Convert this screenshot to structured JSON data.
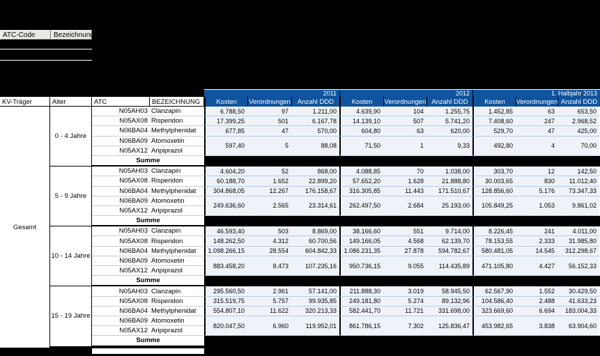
{
  "colors": {
    "header_blue": "#10549E",
    "row_separator_blue": "#B5CBE5",
    "sheet_background": "#000000"
  },
  "top_table": {
    "headers": [
      "ATC-Code",
      "Bezeichnung"
    ]
  },
  "table": {
    "corner_headers": [
      "KV-Träger",
      "Alter",
      "ATC",
      "BEZEICHNUNG"
    ],
    "year_headers": [
      "2011",
      "2012",
      "1. Halbjahr 2013"
    ],
    "measure_headers": [
      "Kosten",
      "Verordnungen",
      "Anzahl DDD"
    ],
    "kv_traeger": "Gesamt",
    "summe_label": "Summe",
    "groups": [
      {
        "age": "0 - 4 Jahre",
        "rows": [
          {
            "atc": "N05AH03",
            "name": "Clanzapin",
            "values": [
              "6.788,50",
              "97",
              "1.211,00",
              "4.639,90",
              "104",
              "1.255,75",
              "1.452,85",
              "63",
              "653,50"
            ]
          },
          {
            "atc": "N05AX08",
            "name": "Risperidon",
            "values": [
              "17.399,25",
              "501",
              "6.167,78",
              "14.139,10",
              "507",
              "5.741,20",
              "7.408,60",
              "247",
              "2.968,52"
            ]
          },
          {
            "atc": "N06BA04",
            "name": "Methylphenidat",
            "values": [
              "677,85",
              "47",
              "570,00",
              "604,80",
              "63",
              "620,00",
              "529,70",
              "47",
              "425,00"
            ]
          }
        ],
        "merged": {
          "rows": [
            {
              "atc": "N06BA09",
              "name": "Atomoxetin"
            },
            {
              "atc": "N05AX12",
              "name": "Aripiprazol"
            }
          ],
          "values": [
            "597,40",
            "5",
            "88,08",
            "71,50",
            "1",
            "9,33",
            "492,80",
            "4",
            "70,00"
          ]
        }
      },
      {
        "age": "5 - 9 Jahre",
        "rows": [
          {
            "atc": "N05AH03",
            "name": "Clanzapin",
            "values": [
              "4.604,20",
              "52",
              "868,00",
              "4.088,85",
              "70",
              "1.038,00",
              "303,70",
              "12",
              "142,50"
            ]
          },
          {
            "atc": "N05AX08",
            "name": "Risperidon",
            "values": [
              "60.188,70",
              "1.652",
              "22.899,20",
              "57.652,20",
              "1.628",
              "21.888,80",
              "30.003,65",
              "830",
              "11.012,40"
            ]
          },
          {
            "atc": "N06BA04",
            "name": "Methylphenidat",
            "values": [
              "304.868,05",
              "12.267",
              "176.158,67",
              "316.305,85",
              "11.443",
              "171.510,67",
              "128.856,60",
              "5.176",
              "73.347,33"
            ]
          }
        ],
        "merged": {
          "rows": [
            {
              "atc": "N06BA09",
              "name": "Atomoxetin"
            },
            {
              "atc": "N05AX12",
              "name": "Aripiprazol"
            }
          ],
          "values": [
            "249.636,60",
            "2.565",
            "23.314,61",
            "262.497,50",
            "2.684",
            "25.193,00",
            "105.849,25",
            "1.053",
            "9.861,02"
          ]
        }
      },
      {
        "age": "10 - 14 Jahre",
        "rows": [
          {
            "atc": "N05AH03",
            "name": "Clanzapin",
            "values": [
              "46.593,40",
              "503",
              "8.869,00",
              "38.166,60",
              "551",
              "9.714,00",
              "8.226,45",
              "241",
              "4.011,00"
            ]
          },
          {
            "atc": "N05AX08",
            "name": "Risperidon",
            "values": [
              "148.262,50",
              "4.312",
              "60.700,56",
              "149.166,05",
              "4.568",
              "62.139,70",
              "78.153,55",
              "2.333",
              "31.985,80"
            ]
          },
          {
            "atc": "N06BA04",
            "name": "Methylphenidat",
            "values": [
              "1.098.266,15",
              "28.554",
              "604.842,33",
              "1.086.231,35",
              "27.878",
              "594.782,67",
              "580.481,05",
              "14.545",
              "312.298,67"
            ]
          }
        ],
        "merged": {
          "rows": [
            {
              "atc": "N06BA09",
              "name": "Atomoxetin"
            },
            {
              "atc": "N05AX12",
              "name": "Aripiprazol"
            }
          ],
          "values": [
            "883.458,20",
            "8.473",
            "107.235,16",
            "950.736,15",
            "9.055",
            "114.435,89",
            "471.105,80",
            "4.427",
            "56.152,33"
          ]
        }
      },
      {
        "age": "15 - 19 Jahre",
        "rows": [
          {
            "atc": "N05AH03",
            "name": "Clanzapin",
            "values": [
              "295.560,50",
              "2.961",
              "57.141,00",
              "211.888,30",
              "3.019",
              "58.945,50",
              "62.567,90",
              "1.552",
              "30.429,50"
            ]
          },
          {
            "atc": "N05AX08",
            "name": "Risperidon",
            "values": [
              "315.519,75",
              "5.757",
              "99.935,85",
              "249.181,80",
              "5.274",
              "89.132,96",
              "104.586,40",
              "2.488",
              "41.633,23"
            ]
          },
          {
            "atc": "N06BA04",
            "name": "Methylphenidat",
            "values": [
              "554.807,10",
              "11.622",
              "320.213,33",
              "582.441,70",
              "11.721",
              "331.698,00",
              "323.669,60",
              "6.694",
              "183.004,33"
            ]
          }
        ],
        "merged": {
          "rows": [
            {
              "atc": "N06BA09",
              "name": "Atomoxetin"
            },
            {
              "atc": "N05AX12",
              "name": "Aripiprazol"
            }
          ],
          "values": [
            "820.047,50",
            "6.960",
            "119.952,01",
            "861.786,15",
            "7.302",
            "125.836,47",
            "453.982,65",
            "3.838",
            "63.904,60"
          ]
        }
      }
    ]
  }
}
